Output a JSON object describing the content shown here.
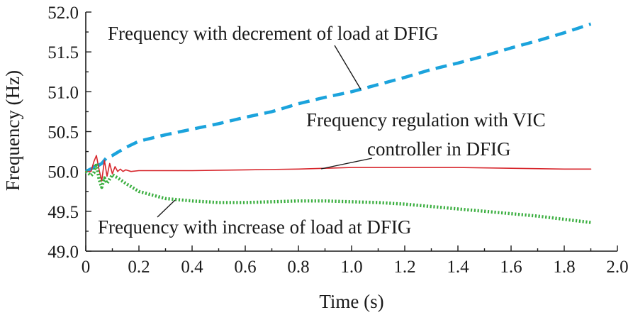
{
  "chart_data": {
    "type": "line",
    "xlabel": "Time (s)",
    "ylabel": "Frequency (Hz)",
    "xlim": [
      0,
      2.0
    ],
    "ylim": [
      49.0,
      52.0
    ],
    "x_ticks": [
      "0",
      "0.2",
      "0.4",
      "0.6",
      "0.8",
      "1.0",
      "1.2",
      "1.4",
      "1.6",
      "1.8",
      "2.0"
    ],
    "y_ticks": [
      "49.0",
      "49.5",
      "50.0",
      "50.5",
      "51.0",
      "51.5",
      "52.0"
    ],
    "grid": false,
    "colors": {
      "decrement": "#1ba3dc",
      "vic": "#d7262c",
      "increase": "#3aae3f"
    },
    "series": [
      {
        "name": "Frequency with decrement of load at DFIG",
        "style": "dashed",
        "x": [
          0.0,
          0.03,
          0.04,
          0.05,
          0.06,
          0.07,
          0.08,
          0.1,
          0.12,
          0.15,
          0.2,
          0.3,
          0.4,
          0.5,
          0.6,
          0.7,
          0.8,
          0.9,
          1.0,
          1.1,
          1.2,
          1.3,
          1.4,
          1.5,
          1.6,
          1.7,
          1.8,
          1.9
        ],
        "y": [
          50.0,
          50.05,
          50.12,
          50.08,
          50.1,
          50.14,
          50.18,
          50.2,
          50.24,
          50.3,
          50.38,
          50.46,
          50.53,
          50.6,
          50.68,
          50.75,
          50.85,
          50.93,
          51.0,
          51.09,
          51.18,
          51.28,
          51.36,
          51.45,
          51.55,
          51.64,
          51.74,
          51.85
        ]
      },
      {
        "name": "Frequency regulation with VIC controller in DFIG",
        "style": "solid",
        "x": [
          0.0,
          0.02,
          0.03,
          0.04,
          0.05,
          0.06,
          0.07,
          0.08,
          0.09,
          0.1,
          0.11,
          0.12,
          0.13,
          0.14,
          0.15,
          0.17,
          0.2,
          0.3,
          0.4,
          0.6,
          0.8,
          1.0,
          1.2,
          1.4,
          1.6,
          1.8,
          1.9
        ],
        "y": [
          50.0,
          50.0,
          50.12,
          50.2,
          50.02,
          49.88,
          50.14,
          49.94,
          50.1,
          49.97,
          50.06,
          50.0,
          50.03,
          50.0,
          50.02,
          50.0,
          50.01,
          50.01,
          50.01,
          50.02,
          50.03,
          50.05,
          50.05,
          50.05,
          50.04,
          50.03,
          50.03
        ]
      },
      {
        "name": "Frequency with increase of load at DFIG",
        "style": "dotted",
        "x": [
          0.0,
          0.02,
          0.03,
          0.04,
          0.05,
          0.06,
          0.07,
          0.08,
          0.1,
          0.12,
          0.15,
          0.2,
          0.3,
          0.4,
          0.5,
          0.6,
          0.7,
          0.8,
          0.9,
          1.0,
          1.1,
          1.2,
          1.3,
          1.4,
          1.5,
          1.6,
          1.7,
          1.8,
          1.9
        ],
        "y": [
          50.0,
          49.95,
          49.98,
          50.1,
          49.9,
          49.8,
          49.92,
          49.85,
          49.96,
          49.92,
          49.85,
          49.75,
          49.66,
          49.63,
          49.61,
          49.61,
          49.62,
          49.63,
          49.63,
          49.62,
          49.61,
          49.59,
          49.56,
          49.53,
          49.5,
          49.47,
          49.44,
          49.4,
          49.36
        ]
      }
    ],
    "annotations": [
      {
        "text": "Frequency with decrement of load at DFIG",
        "target_x": 1.04,
        "target_y": 51.01
      },
      {
        "text": "Frequency regulation with VIC",
        "target_x": 0.88,
        "target_y": 50.02
      },
      {
        "text": "controller in DFIG",
        "target_x": 0.88,
        "target_y": 50.02
      },
      {
        "text": "Frequency with increase of load at DFIG",
        "target_x": 0.29,
        "target_y": 49.64
      }
    ]
  }
}
